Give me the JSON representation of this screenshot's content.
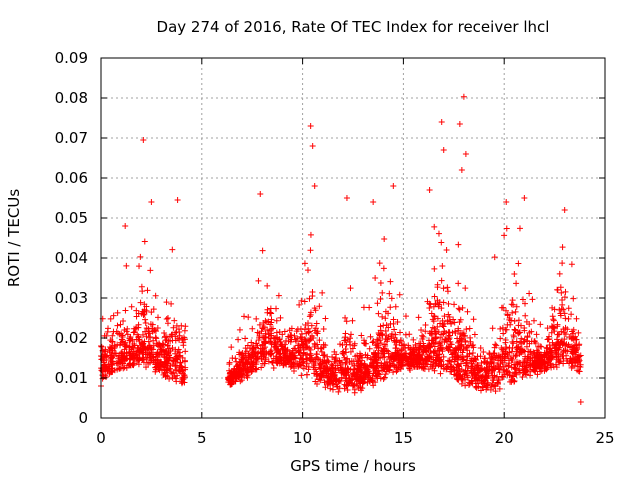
{
  "chart_data": {
    "type": "scatter",
    "title": "Day 274 of 2016, Rate Of TEC Index for receiver lhcl",
    "xlabel": "GPS time / hours",
    "ylabel": "ROTI / TECUs",
    "xlim": [
      0,
      25
    ],
    "ylim": [
      0,
      0.09
    ],
    "xticks": [
      "0",
      "5",
      "10",
      "15",
      "20",
      "25"
    ],
    "yticks": [
      "0",
      "0.01",
      "0.02",
      "0.03",
      "0.04",
      "0.05",
      "0.06",
      "0.07",
      "0.08",
      "0.09"
    ],
    "grid": true,
    "marker": "plus",
    "color": "#ff0000",
    "series": [
      {
        "name": "ROTI",
        "observation_windows_hours": [
          [
            0.0,
            4.2
          ],
          [
            6.3,
            23.8
          ]
        ],
        "typical_range": [
          0.005,
          0.03
        ],
        "notable_points": [
          {
            "x": 0.0,
            "y": 0.018
          },
          {
            "x": 0.0,
            "y": 0.008
          },
          {
            "x": 1.2,
            "y": 0.048
          },
          {
            "x": 2.1,
            "y": 0.0695
          },
          {
            "x": 2.5,
            "y": 0.054
          },
          {
            "x": 3.8,
            "y": 0.0545
          },
          {
            "x": 7.9,
            "y": 0.056
          },
          {
            "x": 10.4,
            "y": 0.073
          },
          {
            "x": 10.5,
            "y": 0.068
          },
          {
            "x": 10.6,
            "y": 0.058
          },
          {
            "x": 12.2,
            "y": 0.055
          },
          {
            "x": 13.5,
            "y": 0.054
          },
          {
            "x": 14.5,
            "y": 0.058
          },
          {
            "x": 16.3,
            "y": 0.057
          },
          {
            "x": 16.9,
            "y": 0.074
          },
          {
            "x": 17.0,
            "y": 0.067
          },
          {
            "x": 17.8,
            "y": 0.0735
          },
          {
            "x": 17.9,
            "y": 0.062
          },
          {
            "x": 18.0,
            "y": 0.0803
          },
          {
            "x": 18.1,
            "y": 0.066
          },
          {
            "x": 20.1,
            "y": 0.054
          },
          {
            "x": 21.0,
            "y": 0.055
          },
          {
            "x": 23.0,
            "y": 0.052
          },
          {
            "x": 23.8,
            "y": 0.004
          }
        ]
      }
    ]
  }
}
